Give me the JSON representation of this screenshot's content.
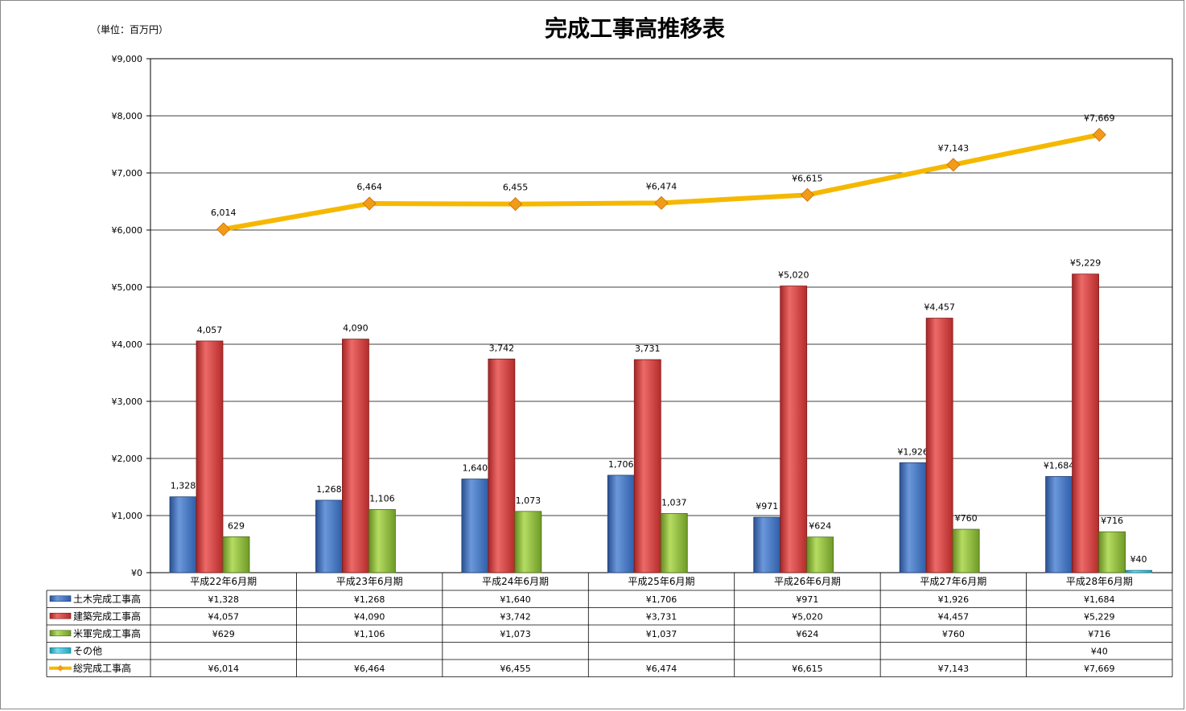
{
  "title": "完成工事高推移表",
  "unit_label": "（単位：百万円）",
  "colors": {
    "doboku": "#3f73c4",
    "kenchiku": "#d83b3a",
    "beigun": "#8cbd3a",
    "other": "#3dbfd6",
    "total": "#f5b800",
    "total_marker": "#f29a1a"
  },
  "chart_data": {
    "type": "bar",
    "title": "完成工事高推移表",
    "ylim": [
      0,
      9000
    ],
    "y_ticks": [
      "¥0",
      "¥1,000",
      "¥2,000",
      "¥3,000",
      "¥4,000",
      "¥5,000",
      "¥6,000",
      "¥7,000",
      "¥8,000",
      "¥9,000"
    ],
    "grid": true,
    "categories": [
      "平成22年6月期",
      "平成23年6月期",
      "平成24年6月期",
      "平成25年6月期",
      "平成26年6月期",
      "平成27年6月期",
      "平成28年6月期"
    ],
    "series": [
      {
        "key": "doboku",
        "name": "土木完成工事高",
        "kind": "bar",
        "values": [
          1328,
          1268,
          1640,
          1706,
          971,
          1926,
          1684
        ],
        "labels": [
          "1,328",
          "1,268",
          "1,640",
          "1,706",
          "¥971",
          "¥1,926",
          "¥1,684"
        ],
        "table": [
          "¥1,328",
          "¥1,268",
          "¥1,640",
          "¥1,706",
          "¥971",
          "¥1,926",
          "¥1,684"
        ]
      },
      {
        "key": "kenchiku",
        "name": "建築完成工事高",
        "kind": "bar",
        "values": [
          4057,
          4090,
          3742,
          3731,
          5020,
          4457,
          5229
        ],
        "labels": [
          "4,057",
          "4,090",
          "3,742",
          "3,731",
          "¥5,020",
          "¥4,457",
          "¥5,229"
        ],
        "table": [
          "¥4,057",
          "¥4,090",
          "¥3,742",
          "¥3,731",
          "¥5,020",
          "¥4,457",
          "¥5,229"
        ]
      },
      {
        "key": "beigun",
        "name": "米軍完成工事高",
        "kind": "bar",
        "values": [
          629,
          1106,
          1073,
          1037,
          624,
          760,
          716
        ],
        "labels": [
          "629",
          "1,106",
          "1,073",
          "1,037",
          "¥624",
          "¥760",
          "¥716"
        ],
        "table": [
          "¥629",
          "¥1,106",
          "¥1,073",
          "¥1,037",
          "¥624",
          "¥760",
          "¥716"
        ]
      },
      {
        "key": "other",
        "name": "その他",
        "kind": "bar",
        "values": [
          null,
          null,
          null,
          null,
          null,
          null,
          40
        ],
        "labels": [
          "",
          "",
          "",
          "",
          "",
          "",
          "¥40"
        ],
        "table": [
          "",
          "",
          "",
          "",
          "",
          "",
          "¥40"
        ]
      },
      {
        "key": "total",
        "name": "総完成工事高",
        "kind": "line",
        "values": [
          6014,
          6464,
          6455,
          6474,
          6615,
          7143,
          7669
        ],
        "labels": [
          "6,014",
          "6,464",
          "6,455",
          "¥6,474",
          "¥6,615",
          "¥7,143",
          "¥7,669"
        ],
        "table": [
          "¥6,014",
          "¥6,464",
          "¥6,455",
          "¥6,474",
          "¥6,615",
          "¥7,143",
          "¥7,669"
        ]
      }
    ]
  }
}
